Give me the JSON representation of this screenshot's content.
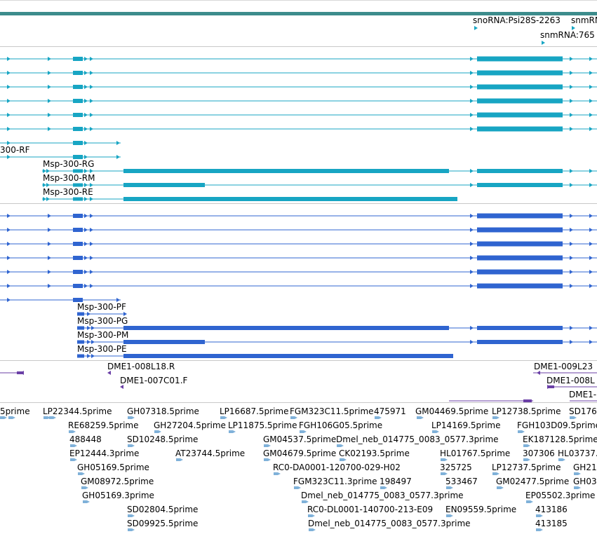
{
  "colors": {
    "teal_bar": "#3c8c8c",
    "cyan": "#17a5c3",
    "blue": "#2f64d0",
    "purple": "#6a3fa6",
    "est": "#7fb1d9",
    "divider": "#c8c8c8"
  },
  "snorna": {
    "labels": [
      "snoRNA:Psi28S-2263",
      "snmRN",
      "snmRNA:765"
    ]
  },
  "transcripts_cyan": {
    "labels": [
      "300-RF",
      "Msp-300-RG",
      "Msp-300-RM",
      "Msp-300-RE"
    ]
  },
  "transcripts_blue": {
    "labels": [
      "Msp-300-PF",
      "Msp-300-PG",
      "Msp-300-PM",
      "Msp-300-PE"
    ]
  },
  "clones": {
    "labels": [
      "DME1-008L18.R",
      "DME1-007C01.F",
      "DME1-009L23",
      "DME1-008L",
      "DME1-"
    ]
  },
  "ests": {
    "labels": [
      "5prime",
      "LP22344.5prime",
      "GH07318.5prime",
      "LP16687.5prime",
      "FGM323C11.5prime",
      "475971",
      "GM04469.5prime",
      "LP12738.5prime",
      "SD176",
      "RE68259.5prime",
      "GH27204.5prime",
      "LP11875.5prime",
      "FGH106G05.5prime",
      "LP14169.5prime",
      "FGH103D09.5prime",
      "488448",
      "SD10248.5prime",
      "GM04537.5prime",
      "Dmel_neb_014775_0083_0577.3prime",
      "EK187128.5prime",
      "EP12444.3prime",
      "AT23744.5prime",
      "GM04679.5prime",
      "CK02193.5prime",
      "HL01767.5prime",
      "307306",
      "HL03737.",
      "GH05169.5prime",
      "RC0-DA0001-120700-029-H02",
      "325725",
      "LP12737.5prime",
      "GH21",
      "GM08972.5prime",
      "FGM323C11.3prime",
      "198497",
      "533467",
      "GM02477.5prime",
      "GH03",
      "GH05169.3prime",
      "Dmel_neb_014775_0083_0577.3prime",
      "EP05502.3prime",
      "SD02804.5prime",
      "RC0-DL0001-140700-213-E09",
      "EN09559.5prime",
      "413186",
      "SD09925.5prime",
      "Dmel_neb_014775_0083_0577.3prime",
      "413185"
    ]
  }
}
